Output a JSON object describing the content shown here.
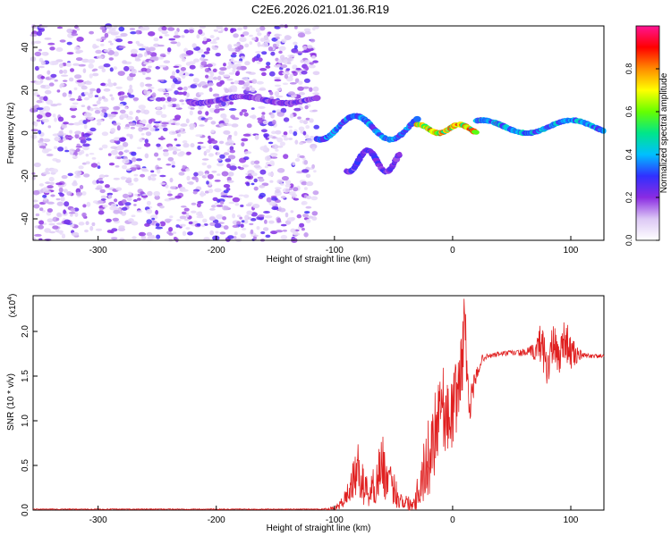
{
  "title": "C2E6.2026.021.01.36.R19",
  "chart_data": [
    {
      "type": "heatmap",
      "xlabel": "Height of straight line (km)",
      "ylabel": "Frequency (Hz)",
      "xlim": [
        -355,
        128
      ],
      "ylim": [
        -50,
        50
      ],
      "xticks": [
        -300,
        -200,
        -100,
        0,
        100
      ],
      "yticks": [
        -40,
        -20,
        0,
        20,
        40
      ],
      "colorbar": {
        "label": "Normalized spectral amplitude",
        "range": [
          0,
          1
        ],
        "ticks": [
          0.0,
          0.2,
          0.4,
          0.6,
          0.8
        ],
        "colors": [
          "#ffffff",
          "#dcc8f5",
          "#8a2be2",
          "#3030ff",
          "#00bfff",
          "#00e68a",
          "#66ff00",
          "#ffff00",
          "#ff8c00",
          "#ff0000",
          "#ff1493"
        ]
      },
      "noise_region_x": [
        -355,
        -115
      ],
      "features": [
        {
          "x": [
            -222,
            -115
          ],
          "y": [
            14,
            17
          ],
          "amplitude": 0.25
        },
        {
          "x": [
            -115,
            -30
          ],
          "y": [
            -3,
            8
          ],
          "amplitude": 0.4
        },
        {
          "x": [
            -30,
            20
          ],
          "y": [
            0,
            4
          ],
          "amplitude": 0.85
        },
        {
          "x": [
            20,
            128
          ],
          "y": [
            0,
            6
          ],
          "amplitude": 0.45
        },
        {
          "x": [
            -90,
            -45
          ],
          "y": [
            -18,
            -8
          ],
          "amplitude": 0.3
        }
      ]
    },
    {
      "type": "line",
      "xlabel": "Height of straight line (km)",
      "ylabel": "SNR (10 * v/v)",
      "exponent_label": "(x10",
      "exponent_power": "4",
      "exponent_close": ")",
      "xlim": [
        -355,
        128
      ],
      "ylim": [
        0,
        2.4
      ],
      "xticks": [
        -300,
        -200,
        -100,
        0,
        100
      ],
      "yticks": [
        "0.0",
        "0.5",
        "1.0",
        "1.5",
        "2.0"
      ],
      "series": [
        {
          "color": "#e02020",
          "x": [
            -355,
            -300,
            -200,
            -110,
            -100,
            -95,
            -90,
            -85,
            -80,
            -75,
            -70,
            -65,
            -60,
            -55,
            -50,
            -45,
            -40,
            -35,
            -30,
            -25,
            -20,
            -15,
            -10,
            -5,
            0,
            5,
            8,
            10,
            12,
            15,
            20,
            25,
            30,
            40,
            50,
            60,
            70,
            75,
            80,
            85,
            90,
            95,
            100,
            110,
            128
          ],
          "y": [
            0.01,
            0.01,
            0.01,
            0.01,
            0.02,
            0.06,
            0.15,
            0.3,
            0.45,
            0.25,
            0.2,
            0.3,
            0.55,
            0.3,
            0.25,
            0.12,
            0.1,
            0.05,
            0.2,
            0.4,
            0.6,
            0.9,
            1.3,
            1.0,
            1.1,
            1.4,
            1.6,
            2.35,
            1.5,
            1.2,
            1.5,
            1.7,
            1.72,
            1.75,
            1.76,
            1.76,
            1.77,
            1.9,
            1.6,
            1.85,
            1.7,
            1.95,
            1.75,
            1.73,
            1.72
          ],
          "noise": [
            0.005,
            0.005,
            0.005,
            0.005,
            0.02,
            0.05,
            0.12,
            0.2,
            0.3,
            0.2,
            0.18,
            0.25,
            0.35,
            0.25,
            0.2,
            0.12,
            0.1,
            0.08,
            0.2,
            0.35,
            0.45,
            0.5,
            0.5,
            0.4,
            0.4,
            0.45,
            0.45,
            0.3,
            0.3,
            0.2,
            0.08,
            0.04,
            0.03,
            0.03,
            0.03,
            0.04,
            0.1,
            0.25,
            0.25,
            0.25,
            0.2,
            0.25,
            0.2,
            0.03,
            0.02
          ]
        }
      ]
    }
  ]
}
